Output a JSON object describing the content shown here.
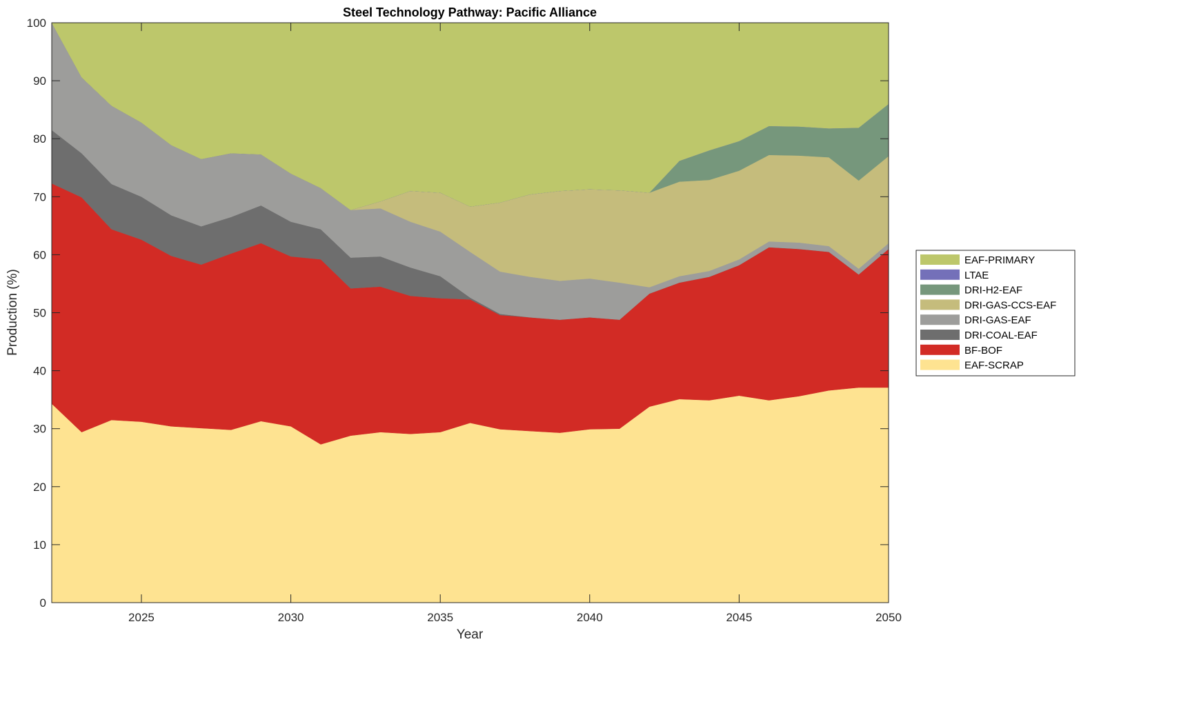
{
  "chart_data": {
    "type": "area",
    "stacked": true,
    "title": "Steel Technology Pathway: Pacific Alliance",
    "xlabel": "Year",
    "ylabel": "Production (%)",
    "xlim": [
      2022,
      2050
    ],
    "ylim": [
      0,
      100
    ],
    "xticks": [
      2025,
      2030,
      2035,
      2040,
      2045,
      2050
    ],
    "yticks": [
      0,
      10,
      20,
      30,
      40,
      50,
      60,
      70,
      80,
      90,
      100
    ],
    "legend_position": "right-outside",
    "x": [
      2022,
      2023,
      2024,
      2025,
      2026,
      2027,
      2028,
      2029,
      2030,
      2031,
      2032,
      2033,
      2034,
      2035,
      2036,
      2037,
      2038,
      2039,
      2040,
      2041,
      2042,
      2043,
      2044,
      2045,
      2046,
      2047,
      2048,
      2049,
      2050
    ],
    "series": [
      {
        "name": "EAF-SCRAP",
        "color": "#fee391",
        "values": [
          34.3,
          29.4,
          31.5,
          31.2,
          30.4,
          30.1,
          29.8,
          31.3,
          30.4,
          27.3,
          28.8,
          29.4,
          29.1,
          29.4,
          31.0,
          29.9,
          29.6,
          29.3,
          29.9,
          30.0,
          33.8,
          35.1,
          34.9,
          35.7,
          34.9,
          35.6,
          36.6,
          37.1,
          37.1
        ]
      },
      {
        "name": "BF-BOF",
        "color": "#d22b25",
        "values": [
          38.0,
          40.5,
          32.9,
          31.4,
          29.4,
          28.2,
          30.4,
          30.7,
          29.3,
          31.9,
          25.4,
          25.1,
          23.8,
          23.1,
          21.3,
          19.7,
          19.6,
          19.5,
          19.3,
          18.8,
          19.5,
          20.1,
          21.3,
          22.5,
          26.4,
          25.4,
          23.9,
          19.5,
          23.9
        ]
      },
      {
        "name": "DRI-COAL-EAF",
        "color": "#6e6e6e",
        "values": [
          9.2,
          7.6,
          7.8,
          7.4,
          7.0,
          6.6,
          6.3,
          6.5,
          6.0,
          5.2,
          5.3,
          5.2,
          4.9,
          3.8,
          0.3,
          0.2,
          0,
          0,
          0,
          0,
          0,
          0,
          0,
          0,
          0,
          0,
          0,
          0,
          0
        ]
      },
      {
        "name": "DRI-GAS-EAF",
        "color": "#9d9d9b",
        "values": [
          18.5,
          13.1,
          13.5,
          12.8,
          12.1,
          11.6,
          11.0,
          8.8,
          8.3,
          7.1,
          8.2,
          8.3,
          7.9,
          7.7,
          7.9,
          7.3,
          7.0,
          6.7,
          6.7,
          6.4,
          1.1,
          1.1,
          1.0,
          1.0,
          1.0,
          1.1,
          1.0,
          1.0,
          1.0
        ]
      },
      {
        "name": "DRI-GAS-CCS-EAF",
        "color": "#c5bc7c",
        "values": [
          0,
          0,
          0,
          0,
          0,
          0,
          0,
          0,
          0,
          0,
          0,
          1.2,
          5.3,
          6.7,
          7.8,
          11.9,
          14.2,
          15.5,
          15.4,
          15.9,
          16.3,
          16.3,
          15.7,
          15.3,
          14.9,
          15.0,
          15.3,
          15.2,
          15.0
        ]
      },
      {
        "name": "DRI-H2-EAF",
        "color": "#76977c",
        "values": [
          0,
          0,
          0,
          0,
          0,
          0,
          0,
          0,
          0,
          0,
          0,
          0,
          0,
          0,
          0,
          0,
          0,
          0,
          0,
          0,
          0,
          3.6,
          5.1,
          5.1,
          5.0,
          5.0,
          5.0,
          9.1,
          9.0
        ]
      },
      {
        "name": "LTAE",
        "color": "#7470b9",
        "values": [
          0,
          0,
          0,
          0,
          0,
          0,
          0,
          0,
          0,
          0,
          0,
          0,
          0,
          0,
          0,
          0,
          0,
          0,
          0,
          0,
          0,
          0,
          0,
          0,
          0,
          0,
          0,
          0,
          0
        ]
      },
      {
        "name": "EAF-PRIMARY",
        "color": "#bdc76b",
        "values": [
          0,
          9.4,
          14.3,
          17.2,
          21.1,
          23.5,
          22.5,
          22.7,
          26.0,
          28.5,
          32.3,
          30.8,
          29.0,
          29.3,
          31.7,
          31.0,
          29.6,
          29.0,
          28.7,
          28.9,
          29.3,
          23.8,
          22.0,
          20.4,
          17.8,
          17.9,
          18.2,
          18.1,
          14.0
        ]
      }
    ]
  }
}
